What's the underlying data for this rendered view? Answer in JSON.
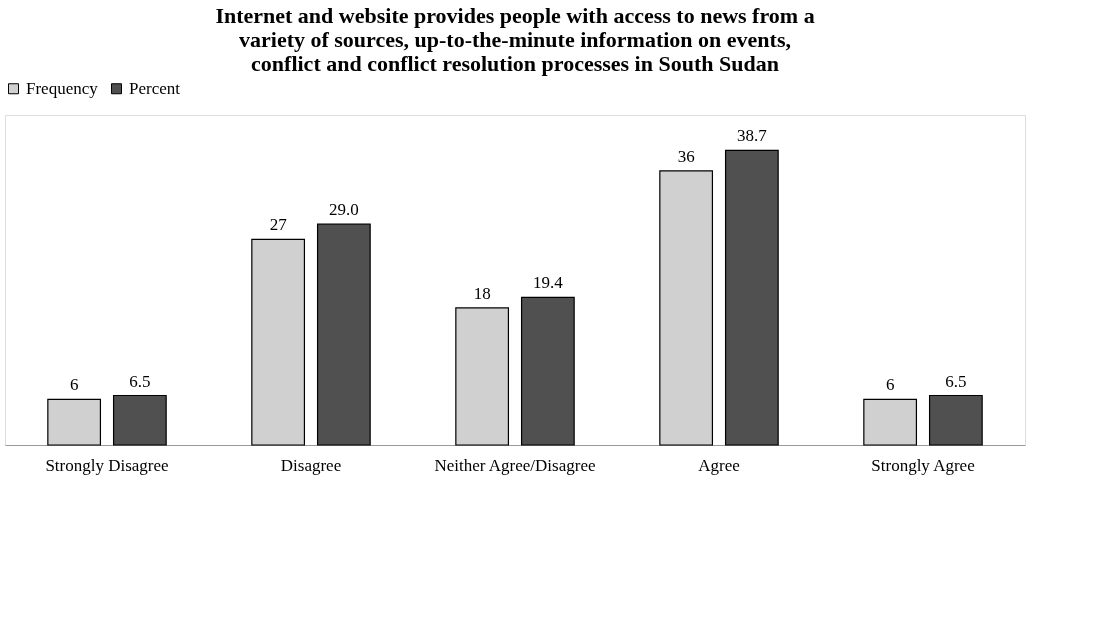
{
  "chart_data": {
    "type": "bar",
    "title": "Internet and website  provides people with access to news from a variety of sources, up-to-the-minute information on events, conflict and conflict resolution processes in South Sudan",
    "categories": [
      "Strongly Disagree",
      "Disagree",
      "Neither Agree/Disagree",
      "Agree",
      "Strongly Agree"
    ],
    "series": [
      {
        "name": "Frequency",
        "color": "#d0d0d0",
        "values": [
          6,
          27,
          18,
          36,
          6
        ],
        "value_labels": [
          "6",
          "27",
          "18",
          "36",
          "6"
        ]
      },
      {
        "name": "Percent",
        "color": "#505050",
        "values": [
          6.5,
          29.0,
          19.4,
          38.7,
          6.5
        ],
        "value_labels": [
          "6.5",
          "29.0",
          "19.4",
          "38.7",
          "6.5"
        ]
      }
    ],
    "legend": "top",
    "grid": false
  }
}
